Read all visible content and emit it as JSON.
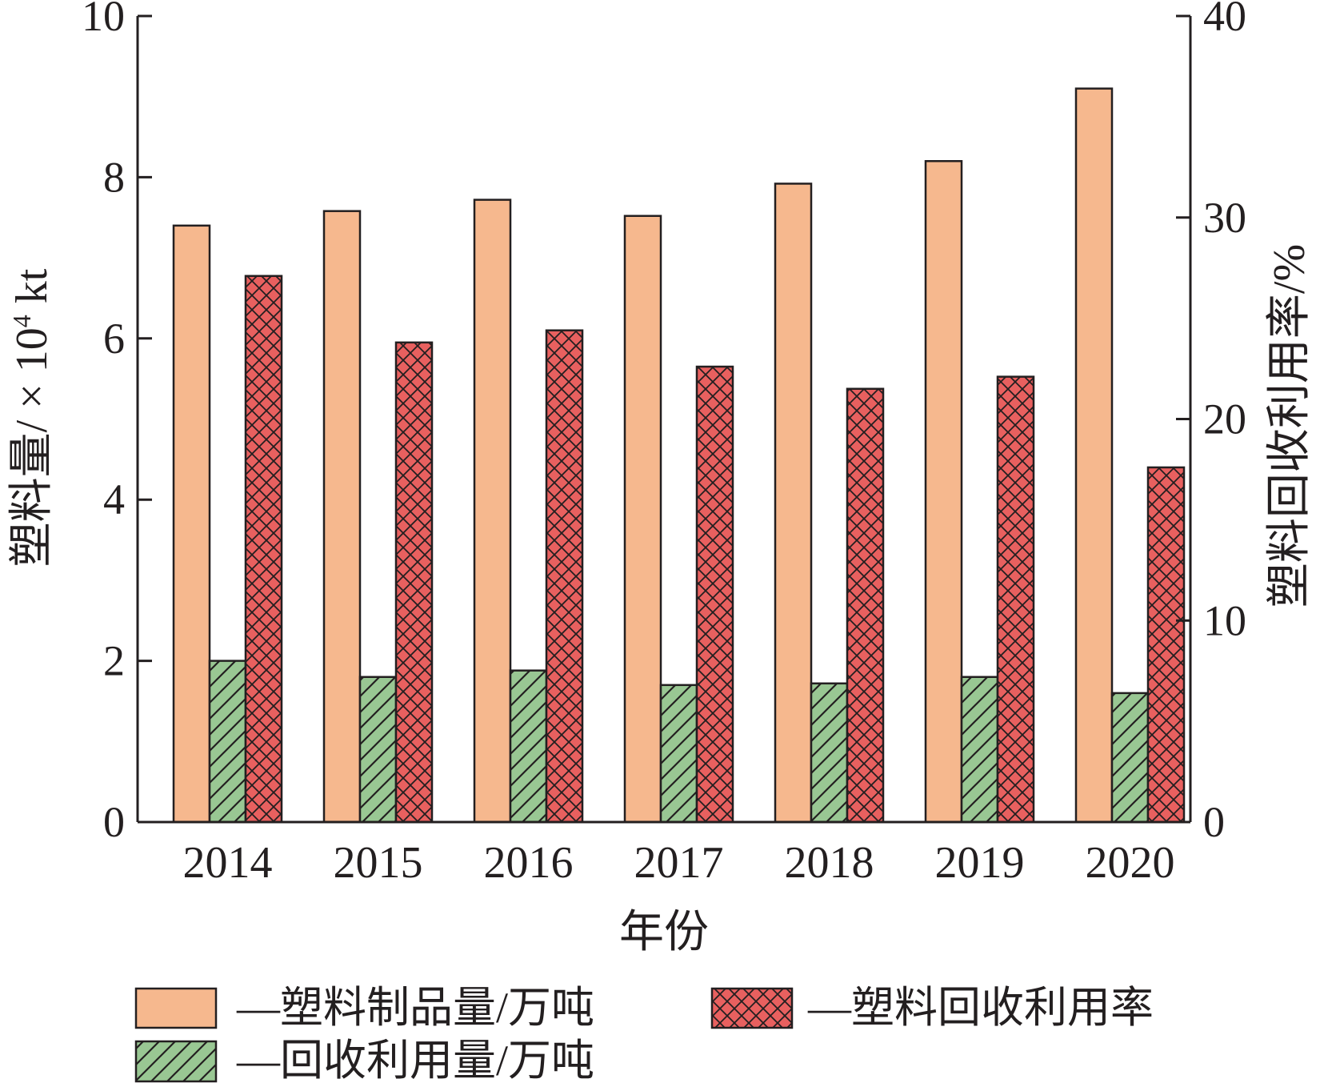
{
  "chart_data": {
    "type": "bar",
    "categories": [
      "2014",
      "2015",
      "2016",
      "2017",
      "2018",
      "2019",
      "2020"
    ],
    "xlabel": "年份",
    "ylabel_left": {
      "main": "塑料量/ × 10",
      "sup": "4",
      "unit": " kt"
    },
    "ylabel_right": "塑料回收利用率/%",
    "ylim_left": [
      0,
      10
    ],
    "yticks_left": [
      "0",
      "2",
      "4",
      "6",
      "8",
      "10"
    ],
    "ylim_right": [
      0,
      40
    ],
    "yticks_right": [
      "0",
      "10",
      "20",
      "30",
      "40"
    ],
    "series": [
      {
        "name": "—塑料制品量/万吨",
        "axis": "left",
        "color": "#f6b88e",
        "pattern": "solid",
        "values": [
          7.4,
          7.58,
          7.72,
          7.52,
          7.92,
          8.2,
          9.1
        ]
      },
      {
        "name": "—回收利用量/万吨",
        "axis": "left",
        "color": "#99c793",
        "pattern": "hatch",
        "values": [
          2.0,
          1.8,
          1.88,
          1.7,
          1.72,
          1.8,
          1.6
        ]
      },
      {
        "name": "—塑料回收利用率",
        "axis": "right",
        "color": "#e8605f",
        "pattern": "crosshatch",
        "values": [
          27.1,
          23.8,
          24.4,
          22.6,
          21.5,
          22.1,
          17.6
        ]
      }
    ],
    "legend_placement": "bottom",
    "grid": false
  }
}
